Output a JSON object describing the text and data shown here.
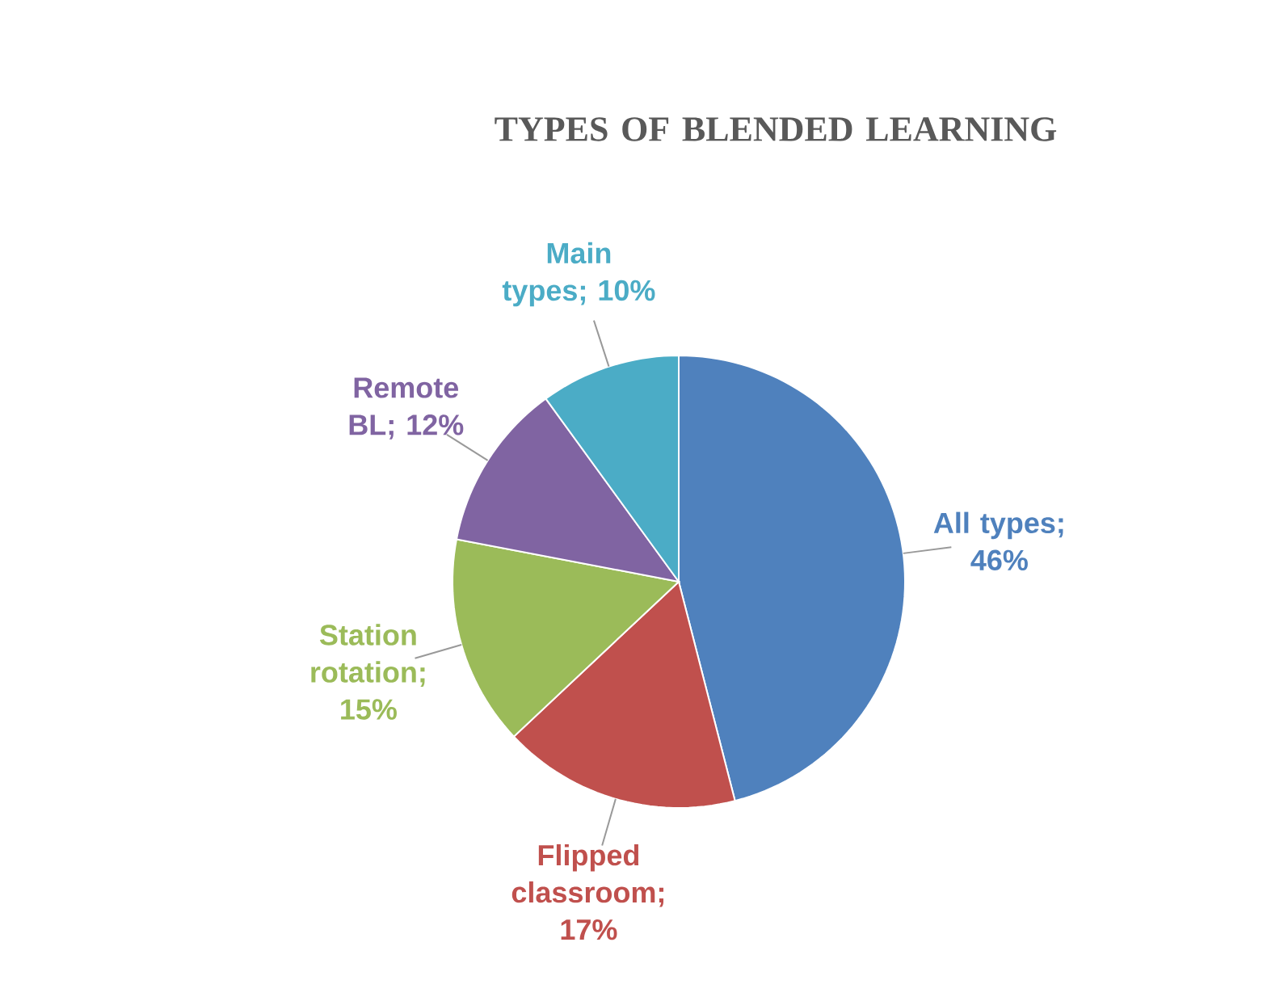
{
  "chart_data": {
    "type": "pie",
    "title": "TYPES OF BLENDED LEARNING",
    "categories": [
      "All types; 46%",
      "Flipped classroom; 17%",
      "Station rotation; 15%",
      "Remote BL; 12%",
      "Main types; 10%"
    ],
    "values": [
      46,
      17,
      15,
      12,
      10
    ],
    "colors": [
      "#4f81bd",
      "#c0504d",
      "#9bbb59",
      "#8064a2",
      "#4bacc6"
    ]
  }
}
